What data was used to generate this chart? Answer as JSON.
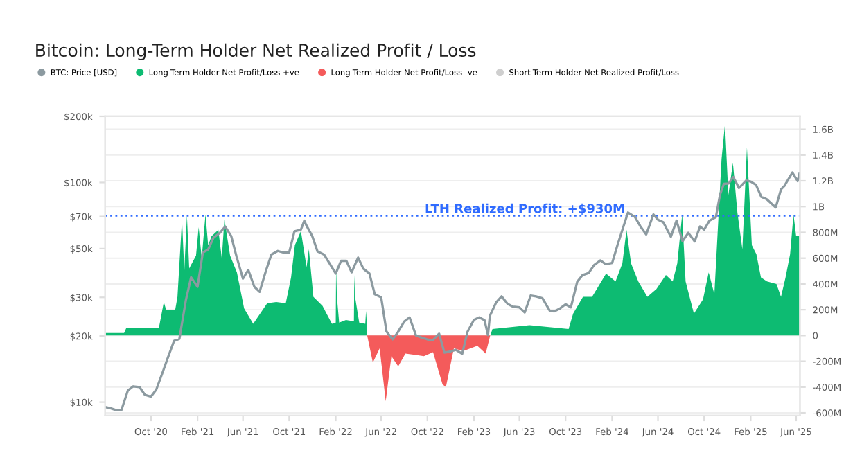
{
  "chart_data": {
    "type": "line",
    "title": "Bitcoin: Long-Term Holder Net Realized Profit / Loss",
    "log": "y",
    "grid": "y",
    "legend": "top left",
    "xlim": [
      "2020-06-02",
      "2025-06-11"
    ],
    "xticks": [
      {
        "value": "2020-10-01",
        "label": "Oct '20"
      },
      {
        "value": "2021-02-01",
        "label": "Feb '21"
      },
      {
        "value": "2021-06-01",
        "label": "Jun '21"
      },
      {
        "value": "2021-10-01",
        "label": "Oct '21"
      },
      {
        "value": "2022-02-01",
        "label": "Feb '22"
      },
      {
        "value": "2022-06-01",
        "label": "Jun '22"
      },
      {
        "value": "2022-10-01",
        "label": "Oct '22"
      },
      {
        "value": "2023-02-01",
        "label": "Feb '23"
      },
      {
        "value": "2023-06-01",
        "label": "Jun '23"
      },
      {
        "value": "2023-10-01",
        "label": "Oct '23"
      },
      {
        "value": "2024-02-01",
        "label": "Feb '24"
      },
      {
        "value": "2024-06-01",
        "label": "Jun '24"
      },
      {
        "value": "2024-10-01",
        "label": "Oct '24"
      },
      {
        "value": "2025-02-01",
        "label": "Feb '25"
      },
      {
        "value": "2025-06-01",
        "label": "Jun '25"
      }
    ],
    "ylim": [
      8700,
      200000
    ],
    "yticks": [
      {
        "value": 10000,
        "label": "$10k"
      },
      {
        "value": 20000,
        "label": "$20k"
      },
      {
        "value": 30000,
        "label": "$30k"
      },
      {
        "value": 50000,
        "label": "$50k"
      },
      {
        "value": 70000,
        "label": "$70k"
      },
      {
        "value": 100000,
        "label": "$100k"
      },
      {
        "value": 200000,
        "label": "$200k"
      }
    ],
    "y2lim": [
      -620000000,
      1700000000
    ],
    "y2ticks": [
      {
        "value": -600000000,
        "label": "-600M"
      },
      {
        "value": -400000000,
        "label": "-400M"
      },
      {
        "value": -200000000,
        "label": "-200M"
      },
      0,
      {
        "value": 200000000,
        "label": "200M"
      },
      {
        "value": 400000000,
        "label": "400M"
      },
      {
        "value": 600000000,
        "label": "600M"
      },
      {
        "value": 800000000,
        "label": "800M"
      },
      {
        "value": 1000000000,
        "label": "1B"
      },
      {
        "value": 1200000000,
        "label": "1.2B"
      },
      {
        "value": 1400000000,
        "label": "1.4B"
      },
      {
        "value": 1600000000,
        "label": "1.6B"
      }
    ],
    "ref_lines": [
      {
        "axis": "y2",
        "value": 930000000,
        "label": "LTH Realized Profit: +$930M",
        "color": "#2f6bff",
        "line_style": "dotted"
      }
    ],
    "annotations": [
      "Short-Term Holder Net Realized Profit/Loss"
    ],
    "series": [
      {
        "name": "BTC: Price [USD]",
        "axis": "y",
        "color": "#8c9aa0",
        "x": [
          "2020-06-02",
          "2020-06-15",
          "2020-07-01",
          "2020-07-15",
          "2020-08-01",
          "2020-08-15",
          "2020-09-01",
          "2020-09-15",
          "2020-10-01",
          "2020-10-15",
          "2020-11-01",
          "2020-11-15",
          "2020-12-01",
          "2020-12-15",
          "2021-01-01",
          "2021-01-15",
          "2021-02-01",
          "2021-02-15",
          "2021-03-01",
          "2021-03-15",
          "2021-04-01",
          "2021-04-15",
          "2021-05-01",
          "2021-05-15",
          "2021-06-01",
          "2021-06-15",
          "2021-07-01",
          "2021-07-15",
          "2021-08-01",
          "2021-08-15",
          "2021-09-01",
          "2021-09-15",
          "2021-10-01",
          "2021-10-15",
          "2021-11-01",
          "2021-11-10",
          "2021-11-15",
          "2021-12-01",
          "2021-12-15",
          "2022-01-01",
          "2022-01-15",
          "2022-02-01",
          "2022-02-15",
          "2022-03-01",
          "2022-03-15",
          "2022-04-01",
          "2022-04-15",
          "2022-05-01",
          "2022-05-15",
          "2022-06-01",
          "2022-06-15",
          "2022-07-01",
          "2022-07-15",
          "2022-08-01",
          "2022-08-15",
          "2022-09-01",
          "2022-09-15",
          "2022-10-01",
          "2022-10-15",
          "2022-11-01",
          "2022-11-15",
          "2022-12-01",
          "2022-12-15",
          "2023-01-01",
          "2023-01-15",
          "2023-02-01",
          "2023-02-15",
          "2023-03-01",
          "2023-03-10",
          "2023-03-15",
          "2023-04-01",
          "2023-04-15",
          "2023-05-01",
          "2023-05-15",
          "2023-06-01",
          "2023-06-15",
          "2023-07-01",
          "2023-07-15",
          "2023-08-01",
          "2023-08-20",
          "2023-09-01",
          "2023-09-15",
          "2023-10-01",
          "2023-10-15",
          "2023-11-01",
          "2023-11-15",
          "2023-12-01",
          "2023-12-15",
          "2024-01-01",
          "2024-01-15",
          "2024-02-01",
          "2024-02-15",
          "2024-03-01",
          "2024-03-14",
          "2024-04-01",
          "2024-04-15",
          "2024-05-01",
          "2024-05-20",
          "2024-06-01",
          "2024-06-15",
          "2024-07-05",
          "2024-07-20",
          "2024-08-05",
          "2024-08-20",
          "2024-09-06",
          "2024-09-20",
          "2024-10-01",
          "2024-10-15",
          "2024-11-01",
          "2024-11-12",
          "2024-11-22",
          "2024-12-05",
          "2024-12-17",
          "2025-01-01",
          "2025-01-20",
          "2025-02-01",
          "2025-02-15",
          "2025-03-01",
          "2025-03-15",
          "2025-04-08",
          "2025-04-22",
          "2025-05-01",
          "2025-05-22",
          "2025-06-05",
          "2025-06-10"
        ],
        "values": [
          9500,
          9400,
          9200,
          9200,
          11300,
          11800,
          11700,
          10800,
          10600,
          11400,
          13700,
          16000,
          19000,
          19400,
          29000,
          37000,
          33500,
          48000,
          49500,
          56000,
          59000,
          63000,
          57000,
          46000,
          36500,
          40000,
          33500,
          31800,
          39800,
          47000,
          48800,
          48000,
          48000,
          60000,
          61000,
          67000,
          64000,
          57000,
          48500,
          47000,
          43000,
          38500,
          44000,
          44000,
          39000,
          45500,
          40500,
          38500,
          31000,
          30000,
          21000,
          19300,
          20800,
          23300,
          24300,
          20100,
          19700,
          19300,
          19100,
          20500,
          16800,
          17000,
          17300,
          16600,
          20900,
          23700,
          24300,
          23600,
          20200,
          24700,
          28500,
          30300,
          28000,
          27200,
          27000,
          25600,
          30600,
          30300,
          29700,
          26100,
          25900,
          26600,
          27900,
          27000,
          35400,
          37900,
          38700,
          42000,
          44200,
          42500,
          43000,
          51800,
          62400,
          73000,
          69700,
          63400,
          58000,
          71500,
          67700,
          66000,
          56600,
          67000,
          54000,
          59000,
          53900,
          63000,
          61000,
          67000,
          69500,
          88000,
          98500,
          99000,
          106000,
          94400,
          102000,
          101000,
          97500,
          86000,
          84000,
          77000,
          93000,
          96500,
          111000,
          101500,
          110000
        ]
      },
      {
        "name": "Long-Term Holder Net Profit/Loss +ve",
        "type": "area",
        "axis": "y2",
        "color": "#0dbb72",
        "x": [
          "2020-06-02",
          "2020-06-04",
          "2020-07-22",
          "2020-07-28",
          "2020-10-22",
          "2020-11-04",
          "2020-11-10",
          "2020-12-04",
          "2020-12-10",
          "2020-12-22",
          "2020-12-28",
          "2021-01-04",
          "2021-01-10",
          "2021-01-28",
          "2021-02-04",
          "2021-02-12",
          "2021-02-22",
          "2021-03-01",
          "2021-03-10",
          "2021-03-28",
          "2021-04-06",
          "2021-04-13",
          "2021-04-28",
          "2021-05-16",
          "2021-06-04",
          "2021-06-28",
          "2021-08-04",
          "2021-08-28",
          "2021-09-22",
          "2021-10-06",
          "2021-10-16",
          "2021-11-01",
          "2021-11-16",
          "2021-11-22",
          "2021-12-04",
          "2021-12-28",
          "2022-01-22",
          "2022-02-01",
          "2022-02-02",
          "2022-02-04",
          "2022-02-10",
          "2022-02-28",
          "2022-03-21",
          "2022-03-22",
          "2022-03-24",
          "2022-04-04",
          "2022-04-20",
          "2022-04-22",
          "2022-04-24",
          "2022-04-25",
          "2023-03-16",
          "2023-03-22",
          "2023-06-28",
          "2023-10-09",
          "2023-10-21",
          "2023-11-16",
          "2023-12-10",
          "2024-01-16",
          "2024-02-10",
          "2024-02-28",
          "2024-03-10",
          "2024-03-22",
          "2024-04-10",
          "2024-05-04",
          "2024-05-28",
          "2024-06-22",
          "2024-07-10",
          "2024-07-22",
          "2024-08-04",
          "2024-08-13",
          "2024-09-04",
          "2024-09-28",
          "2024-10-13",
          "2024-10-28",
          "2024-11-16",
          "2024-11-25",
          "2024-12-04",
          "2024-12-16",
          "2024-12-28",
          "2025-01-10",
          "2025-01-22",
          "2025-02-04",
          "2025-02-16",
          "2025-02-28",
          "2025-03-16",
          "2025-04-10",
          "2025-04-22",
          "2025-05-04",
          "2025-05-16",
          "2025-05-25",
          "2025-06-01",
          "2025-06-07",
          "2025-06-11"
        ],
        "values": [
          20000000,
          20000000,
          20000000,
          60000000,
          60000000,
          260000000,
          200000000,
          200000000,
          300000000,
          900000000,
          500000000,
          930000000,
          520000000,
          620000000,
          840000000,
          600000000,
          940000000,
          700000000,
          770000000,
          820000000,
          600000000,
          900000000,
          620000000,
          490000000,
          210000000,
          90000000,
          250000000,
          260000000,
          250000000,
          450000000,
          700000000,
          810000000,
          530000000,
          670000000,
          300000000,
          230000000,
          90000000,
          100000000,
          540000000,
          300000000,
          100000000,
          120000000,
          110000000,
          470000000,
          300000000,
          100000000,
          90000000,
          190000000,
          100000000,
          0,
          0,
          50000000,
          80000000,
          50000000,
          170000000,
          300000000,
          300000000,
          480000000,
          420000000,
          560000000,
          820000000,
          560000000,
          420000000,
          300000000,
          360000000,
          470000000,
          420000000,
          560000000,
          940000000,
          420000000,
          170000000,
          280000000,
          490000000,
          320000000,
          1370000000,
          1640000000,
          1090000000,
          1340000000,
          950000000,
          670000000,
          1460000000,
          700000000,
          630000000,
          450000000,
          420000000,
          400000000,
          300000000,
          450000000,
          630000000,
          940000000,
          770000000,
          770000000,
          770000000
        ]
      },
      {
        "name": "Long-Term Holder Net Profit/Loss -ve",
        "type": "area",
        "axis": "y2",
        "color": "#f45b5b",
        "x": [
          "2022-04-25",
          "2022-05-10",
          "2022-05-28",
          "2022-06-13",
          "2022-06-28",
          "2022-07-16",
          "2022-08-04",
          "2022-08-28",
          "2022-09-22",
          "2022-10-16",
          "2022-11-10",
          "2022-11-19",
          "2022-12-10",
          "2023-01-04",
          "2023-02-10",
          "2023-03-04",
          "2023-03-16"
        ],
        "values": [
          0,
          -210000000,
          -100000000,
          -510000000,
          -160000000,
          -240000000,
          -140000000,
          -150000000,
          -160000000,
          -130000000,
          -380000000,
          -400000000,
          -100000000,
          -120000000,
          -80000000,
          -140000000,
          0
        ]
      }
    ]
  }
}
